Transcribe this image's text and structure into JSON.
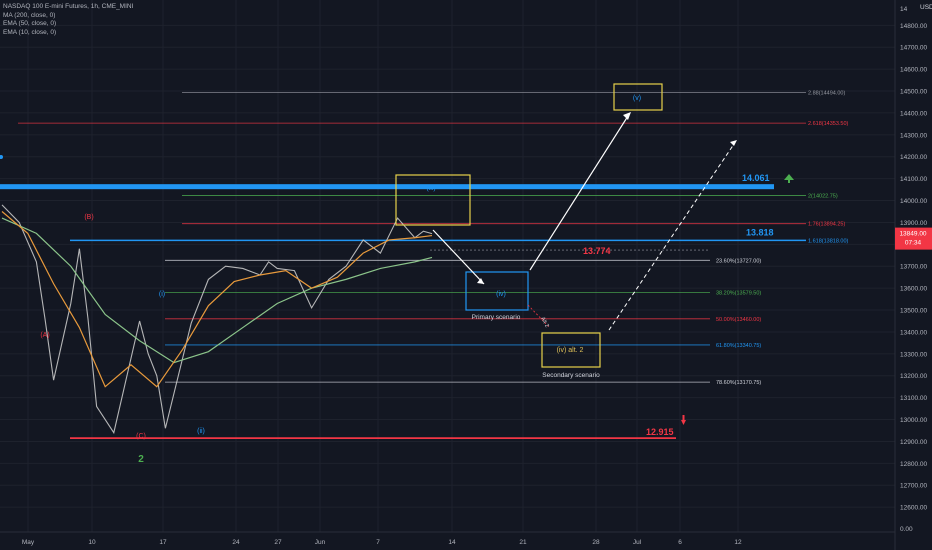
{
  "legend": {
    "symbol": "NASDAQ 100 E-mini Futures, 1h, CME_MINI",
    "indicators": [
      "MA (200, close, 0)",
      "EMA (50, close, 0)",
      "EMA (10, close, 0)"
    ]
  },
  "chart_data": {
    "type": "line",
    "title": "NASDAQ 100 E-mini Futures, 1h, CME_MINI",
    "currency": "USD",
    "ylim": [
      12450,
      14870
    ],
    "y_ticks": [
      14800,
      14700,
      14600,
      14500,
      14400,
      14300,
      14200,
      14100,
      14000,
      13900,
      13800,
      13700,
      13600,
      13500,
      13400,
      13300,
      13200,
      13100,
      13000,
      12900,
      12800,
      12700,
      12600
    ],
    "y_tick_labels": [
      "14800.00",
      "14700.00",
      "14600.00",
      "14500.00",
      "14400.00",
      "14300.00",
      "14200.00",
      "14100.00",
      "14000.00",
      "13900.00",
      "13800.00",
      "13700.00",
      "13600.00",
      "13500.00",
      "13400.00",
      "13300.00",
      "13200.00",
      "13100.00",
      "13000.00",
      "12900.00",
      "12800.00",
      "12700.00",
      "12600.00"
    ],
    "bottom_tick_label": "0.00",
    "top_partial_label": "14",
    "x_ticks": [
      "May",
      "10",
      "17",
      "24",
      "27",
      "Jun",
      "7",
      "14",
      "21",
      "28",
      "Jul",
      "6",
      "12"
    ],
    "current_price": {
      "value": "13849.00",
      "countdown": "07:34",
      "y": 13849,
      "color": "#f23645"
    },
    "series": [
      {
        "name": "NASDAQ 100 E-mini Futures",
        "color": "#c8c8c8",
        "x": [
          0,
          2,
          4,
          5,
          6,
          8,
          9,
          10,
          11,
          13,
          14,
          16,
          17,
          18,
          19,
          20,
          22,
          24,
          26,
          28,
          30,
          31,
          32,
          34,
          36,
          38,
          40,
          42,
          44,
          46,
          48,
          49,
          50
        ],
        "y": [
          13980,
          13900,
          13720,
          13460,
          13180,
          13530,
          13780,
          13460,
          13060,
          12940,
          13110,
          13450,
          13300,
          13200,
          12960,
          13120,
          13440,
          13640,
          13700,
          13690,
          13660,
          13720,
          13690,
          13680,
          13510,
          13640,
          13700,
          13820,
          13760,
          13920,
          13830,
          13860,
          13849
        ]
      },
      {
        "name": "MA (200, close, 0)",
        "color": "#8bc48a",
        "x": [
          0,
          4,
          8,
          12,
          16,
          20,
          24,
          28,
          32,
          36,
          40,
          44,
          48,
          50
        ],
        "y": [
          13920,
          13850,
          13700,
          13480,
          13360,
          13260,
          13310,
          13420,
          13530,
          13600,
          13640,
          13690,
          13720,
          13740
        ]
      },
      {
        "name": "EMA (50, close, 0)",
        "color": "#e89a3c",
        "x": [
          0,
          3,
          6,
          9,
          12,
          15,
          18,
          21,
          24,
          27,
          30,
          33,
          36,
          39,
          42,
          45,
          48,
          50
        ],
        "y": [
          13950,
          13850,
          13620,
          13420,
          13150,
          13250,
          13150,
          13320,
          13520,
          13630,
          13660,
          13680,
          13600,
          13650,
          13760,
          13820,
          13830,
          13840
        ]
      }
    ],
    "levels": [
      {
        "label": "2.88(14494.00)",
        "value": 14494,
        "color": "#9598a1"
      },
      {
        "label": "2.618(14353.50)",
        "value": 14353.5,
        "color": "#f23645"
      },
      {
        "label": "2(14022.75)",
        "value": 14022.75,
        "color": "#4caf50"
      },
      {
        "label": "1.76(13894.25)",
        "value": 13894.25,
        "color": "#f23645"
      },
      {
        "label": "1.618(13818.00)",
        "value": 13818,
        "color": "#2196f3"
      },
      {
        "label": "23.60%(13727.00)",
        "value": 13727,
        "color": "#d1d4dc"
      },
      {
        "label": "38.20%(13579.50)",
        "value": 13579.5,
        "color": "#4caf50"
      },
      {
        "label": "50.00%(13460.00)",
        "value": 13460,
        "color": "#f23645"
      },
      {
        "label": "61.80%(13340.75)",
        "value": 13340.75,
        "color": "#2196f3"
      },
      {
        "label": "78.60%(13170.75)",
        "value": 13170.75,
        "color": "#d1d4dc"
      }
    ],
    "key_levels": [
      {
        "label": "14.061",
        "value": 14061,
        "color": "#2196f3"
      },
      {
        "label": "13.818",
        "value": 13818,
        "color": "#2196f3"
      },
      {
        "label": "13.774",
        "value": 13774,
        "color": "#f23645"
      },
      {
        "label": "12.915",
        "value": 12915,
        "color": "#f23645"
      }
    ],
    "wave_labels": [
      {
        "text": "(B)",
        "x": 9,
        "y": 13880,
        "color": "#f23645"
      },
      {
        "text": "(A)",
        "x": 4,
        "y": 13280,
        "color": "#f23645"
      },
      {
        "text": "(C)",
        "x": 14,
        "y": 12880,
        "color": "#f23645"
      },
      {
        "text": "2",
        "x": 14,
        "y": 12700,
        "color": "#4caf50"
      },
      {
        "text": "(i)",
        "x": 16,
        "y": 13560,
        "color": "#2196f3"
      },
      {
        "text": "(ii)",
        "x": 20,
        "y": 12920,
        "color": "#2196f3"
      },
      {
        "text": "(iii)",
        "x": 42,
        "y": 13960,
        "color": "#2196f3"
      },
      {
        "text": "(iv)",
        "x": 49,
        "y": 13520,
        "color": "#2196f3"
      },
      {
        "text": "(v)",
        "x": 63,
        "y": 14400,
        "color": "#2196f3"
      },
      {
        "text": "(iv) alt. 2",
        "x": 56,
        "y": 13260,
        "color": "#e0c35a"
      }
    ],
    "annotations": [
      {
        "text": "Primary scenario",
        "x": 49,
        "y": 13420
      },
      {
        "text": "Secondary scenario",
        "x": 56,
        "y": 13120
      },
      {
        "text": "Alt 2",
        "x": 53,
        "y": 13400
      }
    ],
    "boxes": [
      {
        "label": "(iii)",
        "color": "#e6d14b"
      },
      {
        "label": "(iv)",
        "color": "#2196f3"
      },
      {
        "label": "(iv) alt. 2",
        "color": "#e6d14b"
      },
      {
        "label": "(v)",
        "color": "#e6d14b"
      }
    ],
    "grid": true
  }
}
